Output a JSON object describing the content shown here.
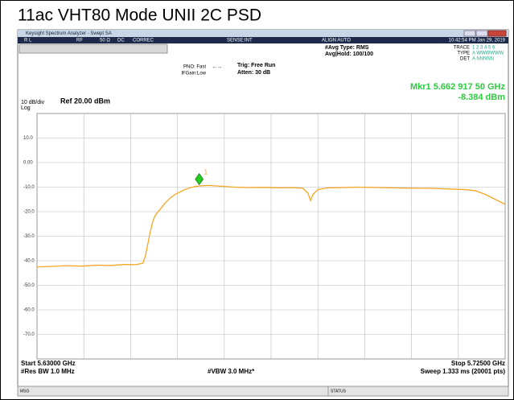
{
  "page_title": "11ac VHT80 Mode UNII 2C PSD",
  "window_title": "Keysight Spectrum Analyzer - Swept SA",
  "toolbar": {
    "rl": "R L",
    "rf": "RF",
    "impedance": "50 Ω",
    "coupling": "DC",
    "correc": "CORREC",
    "sense": "SENSE:INT",
    "align": "ALIGN AUTO",
    "datetime": "10:42:54 PM Jan 29, 2019"
  },
  "info": {
    "pno": "PNO: Fast",
    "ifgain": "IFGain:Low",
    "trig": "Trig: Free Run",
    "atten": "Atten: 30 dB",
    "avg_type": "#Avg Type: RMS",
    "avg_hold": "Avg|Hold: 100/100",
    "trace_label": "TRACE",
    "trace_nums": "1 2 3 4 5 6",
    "type_label": "TYPE",
    "type_value": "A WWWWWW",
    "det_label": "DET",
    "det_value": "A NNNNN"
  },
  "marker_readout": {
    "freq": "Mkr1 5.662 917 50 GHz",
    "level": "-8.384 dBm"
  },
  "scale": {
    "per_div": "10 dB/div",
    "log": "Log",
    "ref": "Ref 20.00 dBm"
  },
  "footer": {
    "start": "Start 5.63000 GHz",
    "rbw": "#Res BW 1.0 MHz",
    "vbw": "#VBW 3.0 MHz*",
    "stop": "Stop 5.72500 GHz",
    "sweep": "Sweep  1.333 ms (20001 pts)"
  },
  "status_bar": {
    "msg": "MSG",
    "status": "STATUS"
  },
  "chart_data": {
    "type": "line",
    "color": "#f5a623",
    "xlim": [
      5.63,
      5.725
    ],
    "ylim": [
      -80,
      20
    ],
    "yticks": [
      {
        "value": 10,
        "label": "10.0"
      },
      {
        "value": 0,
        "label": "0.00"
      },
      {
        "value": -10,
        "label": "-10.0"
      },
      {
        "value": -20,
        "label": "-20.0"
      },
      {
        "value": -30,
        "label": "-30.0"
      },
      {
        "value": -40,
        "label": "-40.0"
      },
      {
        "value": -50,
        "label": "-50.0"
      },
      {
        "value": -60,
        "label": "-60.0"
      },
      {
        "value": -70,
        "label": "-70.0"
      }
    ],
    "grid": true,
    "x": [
      5.63,
      5.633,
      5.636,
      5.639,
      5.642,
      5.645,
      5.648,
      5.65,
      5.6515,
      5.652,
      5.6525,
      5.653,
      5.6535,
      5.654,
      5.655,
      5.656,
      5.657,
      5.658,
      5.659,
      5.66,
      5.661,
      5.662,
      5.663,
      5.665,
      5.667,
      5.67,
      5.673,
      5.676,
      5.679,
      5.682,
      5.684,
      5.685,
      5.6855,
      5.686,
      5.687,
      5.689,
      5.692,
      5.695,
      5.7,
      5.705,
      5.71,
      5.714,
      5.717,
      5.719,
      5.721,
      5.723,
      5.725
    ],
    "values": [
      -42.5,
      -42.3,
      -42.0,
      -42.2,
      -41.8,
      -41.9,
      -41.5,
      -41.6,
      -41.0,
      -38,
      -33,
      -28,
      -24,
      -21.5,
      -19,
      -16.5,
      -14.5,
      -13,
      -12,
      -11,
      -10.3,
      -9.8,
      -9.5,
      -9.3,
      -9.6,
      -10.0,
      -10.2,
      -10.1,
      -10.3,
      -10.2,
      -10.5,
      -12.5,
      -15.5,
      -13,
      -11,
      -10.3,
      -10.2,
      -10.0,
      -10.2,
      -10.4,
      -10.5,
      -10.8,
      -11.0,
      -11.5,
      -13,
      -15,
      -17
    ],
    "marker": {
      "label": "1",
      "x": 5.6629175,
      "y": -8.384,
      "color": "#22cc22"
    }
  }
}
